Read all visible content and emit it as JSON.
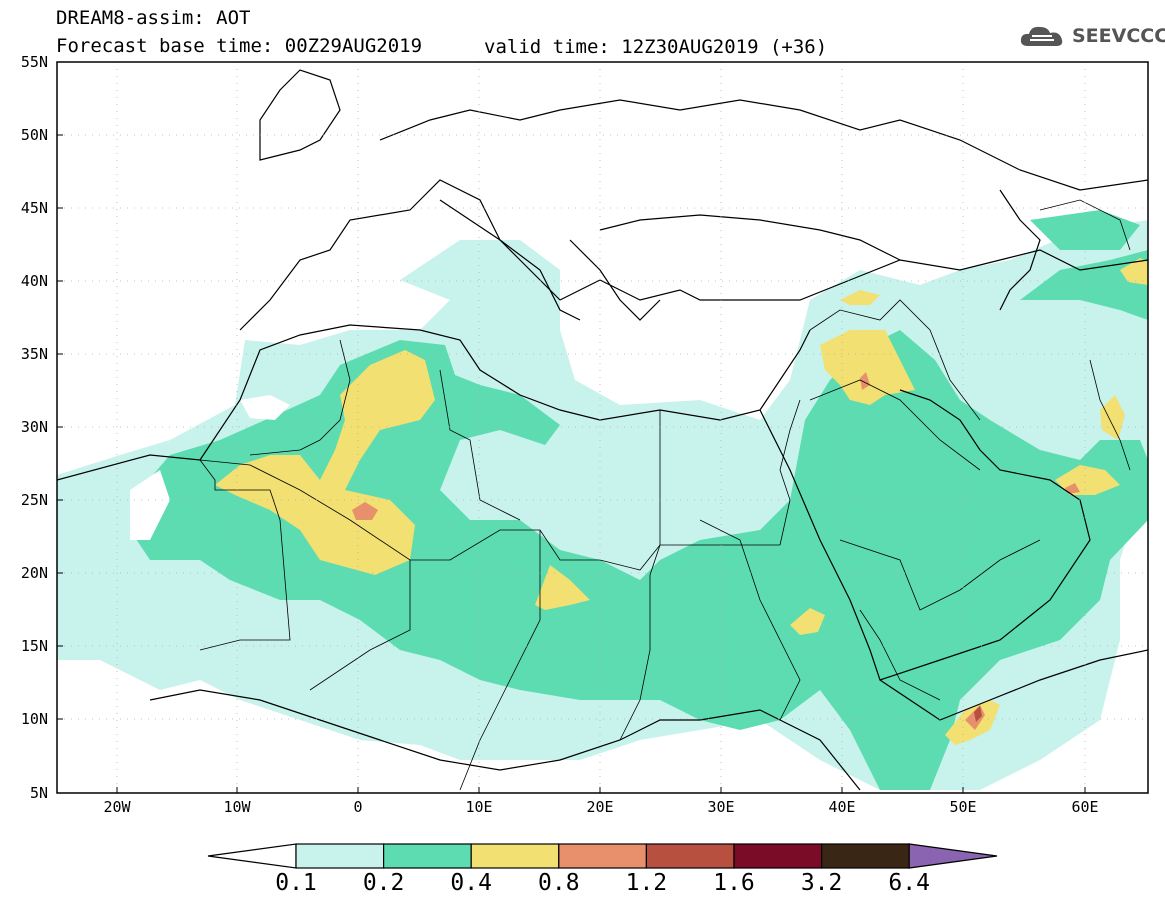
{
  "title": {
    "line1": "DREAM8-assim: AOT",
    "line2": "Forecast base time: 00Z29AUG2019",
    "valid": "valid time: 12Z30AUG2019 (+36)"
  },
  "logo": {
    "text": "SEEVCCC",
    "icon": "cloud-logo-icon"
  },
  "map": {
    "lat_ticks": [
      "55N",
      "50N",
      "45N",
      "40N",
      "35N",
      "30N",
      "25N",
      "20N",
      "15N",
      "10N",
      "5N"
    ],
    "lon_ticks": [
      "20W",
      "10W",
      "0",
      "10E",
      "20E",
      "30E",
      "40E",
      "50E",
      "60E"
    ],
    "extent": {
      "lon_min": -25,
      "lon_max": 65,
      "lat_min": 5,
      "lat_max": 55
    }
  },
  "legend": {
    "labels": [
      "0.1",
      "0.2",
      "0.4",
      "0.8",
      "1.2",
      "1.6",
      "3.2",
      "6.4"
    ],
    "colors": [
      "#ffffff",
      "#c8f2ec",
      "#5cdcb0",
      "#f2e072",
      "#e8906c",
      "#b85040",
      "#7a0c28",
      "#3a2614",
      "#8a64b0"
    ]
  }
}
